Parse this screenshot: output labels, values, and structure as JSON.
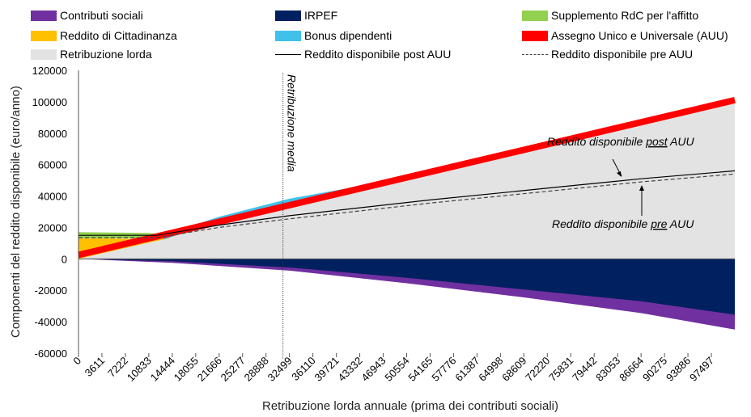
{
  "legend": [
    {
      "id": "contrib",
      "label": "Contributi sociali",
      "color": "#7030a0",
      "kind": "box"
    },
    {
      "id": "irpef",
      "label": "IRPEF",
      "color": "#002060",
      "kind": "box"
    },
    {
      "id": "rdc_affitto",
      "label": "Supplemento RdC per l'affitto",
      "color": "#92d050",
      "kind": "box"
    },
    {
      "id": "rdc",
      "label": "Reddito di Cittadinanza",
      "color": "#ffc000",
      "kind": "box"
    },
    {
      "id": "bonus",
      "label": "Bonus dipendenti",
      "color": "#3fc1ea",
      "kind": "box"
    },
    {
      "id": "auu",
      "label": "Assegno Unico e Universale (AUU)",
      "color": "#ff0000",
      "kind": "box"
    },
    {
      "id": "lorda",
      "label": "Retribuzione lorda",
      "color": "#e3e3e3",
      "kind": "box"
    },
    {
      "id": "post",
      "label": "Reddito disponibile post AUU",
      "color": "#000000",
      "kind": "line"
    },
    {
      "id": "pre",
      "label": "Reddito disponibile pre AUU",
      "color": "#444444",
      "kind": "dash"
    }
  ],
  "chart_data": {
    "type": "area",
    "xlabel": "Retribuzione lorda annuale (prima dei contributi sociali)",
    "ylabel": "Componenti del reddito disponibile (euro/anno)",
    "xlim": [
      0,
      101108
    ],
    "ylim": [
      -60000,
      120000
    ],
    "yticks": [
      -60000,
      -40000,
      -20000,
      0,
      20000,
      40000,
      60000,
      80000,
      100000,
      120000
    ],
    "ytick_labels": [
      "-60000",
      "-40000",
      "-20000",
      "0",
      "20000",
      "40000",
      "60000",
      "80000",
      "100000",
      "120000"
    ],
    "xtick_labels": [
      "0",
      "3611",
      "7222",
      "10833",
      "14444",
      "18055",
      "21666",
      "25277",
      "28888",
      "32499",
      "36110",
      "39721",
      "43332",
      "46943",
      "50554",
      "54165",
      "57776",
      "61387",
      "64998",
      "68609",
      "72220",
      "75831",
      "79442",
      "83053",
      "86664",
      "90275",
      "93886",
      "97497"
    ],
    "series": [
      {
        "name": "Retribuzione lorda",
        "x": [
          0,
          101108
        ],
        "values": [
          0,
          101108
        ]
      },
      {
        "name": "Assegno Unico e Universale (AUU)",
        "x": [
          0,
          101108
        ],
        "values": [
          2500,
          101000
        ]
      },
      {
        "name": "Bonus dipendenti",
        "x": [
          13000,
          21666,
          32499,
          43332
        ],
        "values": [
          13500,
          25500,
          37000,
          45000
        ]
      },
      {
        "name": "Reddito di Cittadinanza",
        "x": [
          0,
          5000,
          10833,
          14000
        ],
        "values": [
          13000,
          13000,
          12500,
          14000
        ]
      },
      {
        "name": "Supplemento RdC per l'affitto",
        "x": [
          0,
          10833,
          14000
        ],
        "values": [
          17000,
          16500,
          15000
        ]
      },
      {
        "name": "IRPEF",
        "x": [
          0,
          14444,
          32499,
          50554,
          68609,
          86664,
          101108
        ],
        "values": [
          0,
          -1500,
          -5500,
          -12000,
          -19500,
          -27000,
          -35500
        ]
      },
      {
        "name": "Contributi sociali",
        "x": [
          0,
          14444,
          32499,
          50554,
          68609,
          86664,
          101108
        ],
        "values": [
          0,
          -2500,
          -7500,
          -15500,
          -24500,
          -34500,
          -45000
        ]
      },
      {
        "name": "Reddito disponibile post AUU",
        "x": [
          0,
          12000,
          21666,
          32499,
          43332,
          54165,
          64998,
          75831,
          86664,
          101108
        ],
        "values": [
          15000,
          15000,
          21500,
          27500,
          32500,
          37500,
          42000,
          46500,
          51000,
          56000
        ]
      },
      {
        "name": "Reddito disponibile pre AUU",
        "x": [
          0,
          12000,
          21666,
          32499,
          43332,
          54165,
          64998,
          75831,
          86664,
          101108
        ],
        "values": [
          13500,
          13500,
          20000,
          25500,
          30500,
          35500,
          40000,
          44500,
          49000,
          54000
        ]
      }
    ],
    "annotations": [
      {
        "id": "media",
        "text": "Retribuzione  media",
        "x": 31500
      },
      {
        "id": "post",
        "text_before": "Reddito disponibile ",
        "text_under": "post",
        "text_after": " AUU"
      },
      {
        "id": "pre",
        "text_before": "Reddito disponibile ",
        "text_under": "pre",
        "text_after": " AUU"
      }
    ]
  }
}
